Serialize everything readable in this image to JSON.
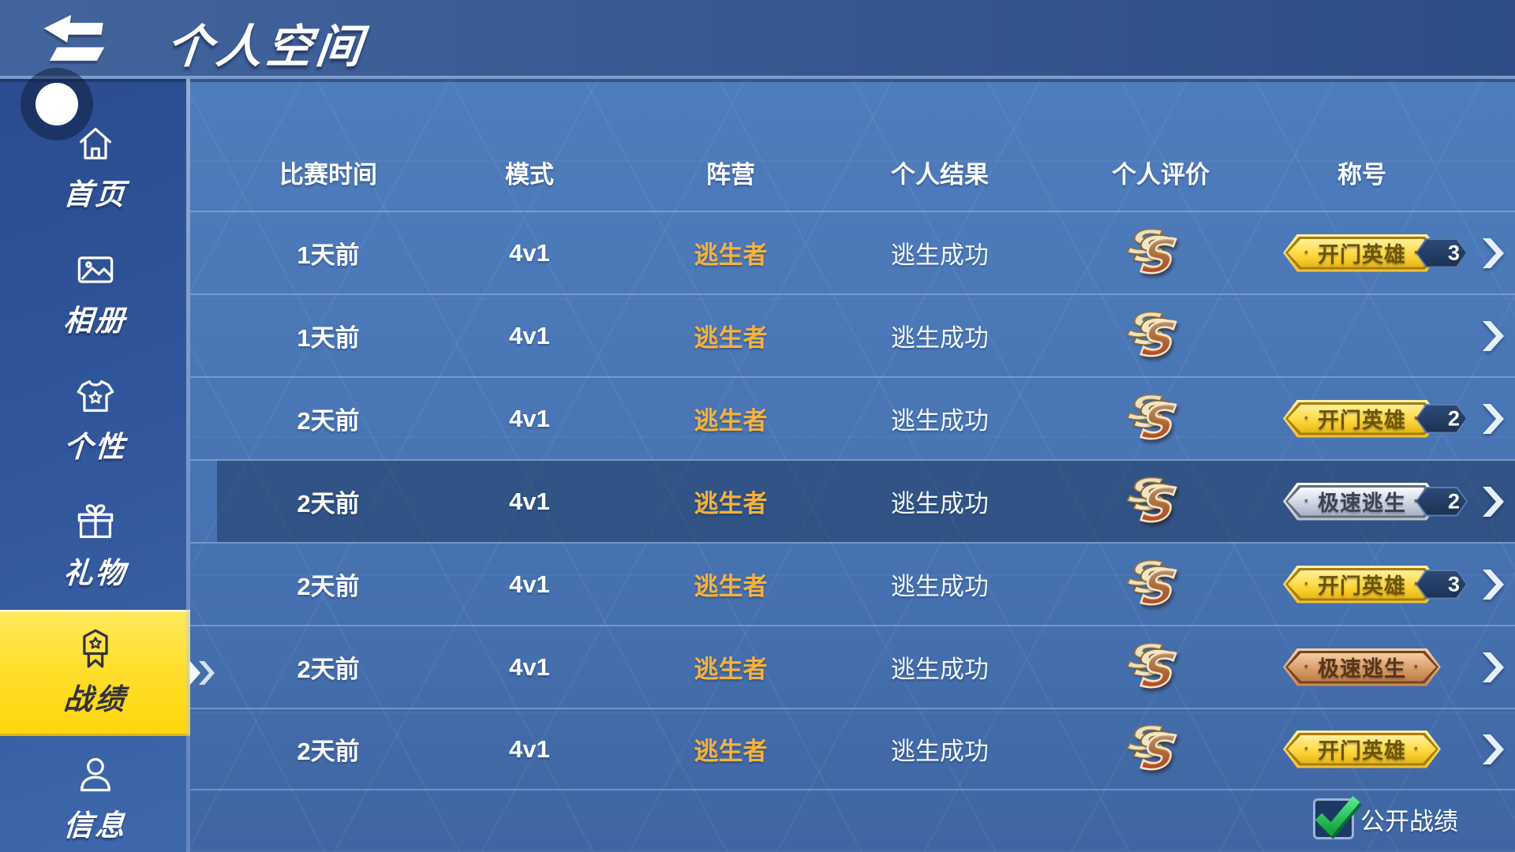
{
  "app": {
    "title": "个人空间"
  },
  "sidebar": {
    "items": [
      {
        "id": "home",
        "label": "首页",
        "icon": "home-icon",
        "selected": false
      },
      {
        "id": "album",
        "label": "相册",
        "icon": "photo-icon",
        "selected": false
      },
      {
        "id": "personality",
        "label": "个性",
        "icon": "tshirt-icon",
        "selected": false
      },
      {
        "id": "gifts",
        "label": "礼物",
        "icon": "gift-icon",
        "selected": false
      },
      {
        "id": "records",
        "label": "战绩",
        "icon": "medal-icon",
        "selected": true
      },
      {
        "id": "info",
        "label": "信息",
        "icon": "person-icon",
        "selected": false
      }
    ]
  },
  "table": {
    "columns": [
      "比赛时间",
      "模式",
      "阵营",
      "个人结果",
      "个人评价",
      "称号"
    ],
    "rows": [
      {
        "time": "1天前",
        "mode": "4v1",
        "faction": "逃生者",
        "result": "逃生成功",
        "rating": "S",
        "badge": {
          "text": "开门英雄",
          "tier": "gold",
          "count": "3"
        },
        "selected": false
      },
      {
        "time": "1天前",
        "mode": "4v1",
        "faction": "逃生者",
        "result": "逃生成功",
        "rating": "S",
        "badge": null,
        "selected": false
      },
      {
        "time": "2天前",
        "mode": "4v1",
        "faction": "逃生者",
        "result": "逃生成功",
        "rating": "S",
        "badge": {
          "text": "开门英雄",
          "tier": "gold",
          "count": "2"
        },
        "selected": false
      },
      {
        "time": "2天前",
        "mode": "4v1",
        "faction": "逃生者",
        "result": "逃生成功",
        "rating": "S",
        "badge": {
          "text": "极速逃生",
          "tier": "silver",
          "count": "2"
        },
        "selected": true
      },
      {
        "time": "2天前",
        "mode": "4v1",
        "faction": "逃生者",
        "result": "逃生成功",
        "rating": "S",
        "badge": {
          "text": "开门英雄",
          "tier": "gold",
          "count": "3"
        },
        "selected": false
      },
      {
        "time": "2天前",
        "mode": "4v1",
        "faction": "逃生者",
        "result": "逃生成功",
        "rating": "S",
        "badge": {
          "text": "极速逃生",
          "tier": "bronze",
          "count": ""
        },
        "selected": false
      },
      {
        "time": "2天前",
        "mode": "4v1",
        "faction": "逃生者",
        "result": "逃生成功",
        "rating": "S",
        "badge": {
          "text": "开门英雄",
          "tier": "gold",
          "count": ""
        },
        "selected": false
      }
    ]
  },
  "footer": {
    "public_records_label": "公开战绩",
    "checkbox_checked": true
  },
  "colors": {
    "topbar_blue": "#3a5a93",
    "sidebar_blue": "#33589d",
    "content_blue": "#4a77b6",
    "accent_yellow": "#ffd60b",
    "faction_orange": "#f6b23c",
    "row_highlight": "#16294d",
    "badge_gold": "#fdd93e",
    "badge_silver": "#ccd5e1",
    "badge_bronze": "#d99d6b",
    "check_green": "#2bc85a"
  }
}
